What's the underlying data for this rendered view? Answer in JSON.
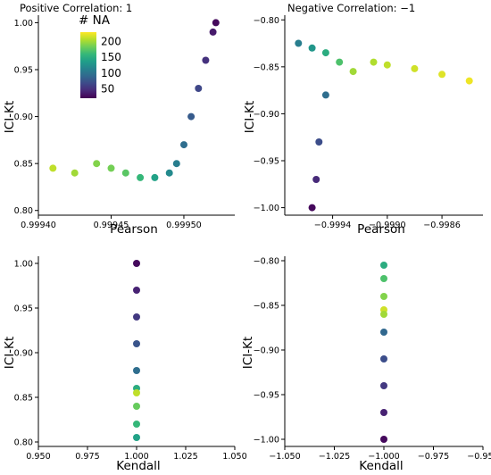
{
  "figure": {
    "colorbar": {
      "title": "# NA",
      "ticks": [
        200,
        150,
        100,
        50
      ],
      "range": [
        20,
        230
      ],
      "colormap": [
        "#440154",
        "#482878",
        "#3e4989",
        "#31688e",
        "#26828e",
        "#1f9e89",
        "#35b779",
        "#6ece58",
        "#b5de2b",
        "#fde725"
      ]
    }
  },
  "chart_data": [
    {
      "type": "scatter",
      "title": "Positive Correlation: 1",
      "xlabel": "Pearson",
      "ylabel": "ICI-Kt",
      "xlim": [
        0.9994,
        0.999535
      ],
      "ylim": [
        0.795,
        1.008
      ],
      "xticks": [
        0.9994,
        0.99945,
        0.9995
      ],
      "xtick_labels": [
        "0.99940",
        "0.99945",
        "0.99950"
      ],
      "yticks": [
        0.8,
        0.85,
        0.9,
        0.95,
        1.0
      ],
      "ytick_labels": [
        "0.80",
        "0.85",
        "0.90",
        "0.95",
        "1.00"
      ],
      "grid": false,
      "legend": "colorbar top-left",
      "series": [
        {
          "color_by": "# NA",
          "x": [
            0.99941,
            0.999425,
            0.99944,
            0.99945,
            0.99946,
            0.99947,
            0.99948,
            0.99949,
            0.999495,
            0.9995,
            0.999505,
            0.99951,
            0.999515,
            0.99952,
            0.999522
          ],
          "y": [
            0.845,
            0.84,
            0.85,
            0.845,
            0.84,
            0.835,
            0.835,
            0.84,
            0.85,
            0.87,
            0.9,
            0.93,
            0.96,
            0.99,
            1.0
          ],
          "na": [
            210,
            200,
            190,
            185,
            175,
            160,
            140,
            120,
            110,
            95,
            80,
            65,
            50,
            35,
            25
          ]
        }
      ]
    },
    {
      "type": "scatter",
      "title": "Negative Correlation: −1",
      "xlabel": "Pearson",
      "ylabel": "ICI-Kt",
      "xlim": [
        -0.99975,
        -0.9983
      ],
      "ylim": [
        -1.008,
        -0.795
      ],
      "xticks": [
        -0.9994,
        -0.999,
        -0.9986
      ],
      "xtick_labels": [
        "−0.9994",
        "−0.9990",
        "−0.9986"
      ],
      "yticks": [
        -0.8,
        -0.85,
        -0.9,
        -0.95,
        -1.0
      ],
      "ytick_labels": [
        "−0.80",
        "−0.85",
        "−0.90",
        "−0.95",
        "−1.00"
      ],
      "grid": false,
      "series": [
        {
          "color_by": "# NA",
          "x": [
            -0.99965,
            -0.99955,
            -0.99945,
            -0.99935,
            -0.99925,
            -0.9991,
            -0.999,
            -0.9988,
            -0.9986,
            -0.9984,
            -0.99945,
            -0.9995,
            -0.99952,
            -0.99955
          ],
          "y": [
            -0.825,
            -0.83,
            -0.835,
            -0.845,
            -0.855,
            -0.845,
            -0.848,
            -0.852,
            -0.858,
            -0.865,
            -0.88,
            -0.93,
            -0.97,
            -1.0
          ],
          "na": [
            110,
            130,
            150,
            170,
            200,
            205,
            210,
            215,
            220,
            225,
            95,
            70,
            45,
            25
          ]
        }
      ]
    },
    {
      "type": "scatter",
      "xlabel": "Kendall",
      "ylabel": "ICI-Kt",
      "xlim": [
        0.95,
        1.05
      ],
      "ylim": [
        0.795,
        1.008
      ],
      "xticks": [
        0.95,
        0.975,
        1.0,
        1.025,
        1.05
      ],
      "xtick_labels": [
        "0.950",
        "0.975",
        "1.000",
        "1.025",
        "1.050"
      ],
      "yticks": [
        0.8,
        0.85,
        0.9,
        0.95,
        1.0
      ],
      "ytick_labels": [
        "0.80",
        "0.85",
        "0.90",
        "0.95",
        "1.00"
      ],
      "grid": false,
      "series": [
        {
          "color_by": "# NA",
          "x": [
            1.0,
            1.0,
            1.0,
            1.0,
            1.0,
            1.0,
            1.0,
            1.0,
            1.0,
            1.0
          ],
          "y": [
            1.0,
            0.97,
            0.94,
            0.91,
            0.88,
            0.86,
            0.855,
            0.84,
            0.82,
            0.805
          ],
          "na": [
            25,
            40,
            55,
            75,
            95,
            150,
            210,
            180,
            160,
            140
          ]
        }
      ]
    },
    {
      "type": "scatter",
      "xlabel": "Kendall",
      "ylabel": "ICI-Kt",
      "xlim": [
        -1.05,
        -0.95
      ],
      "ylim": [
        -1.008,
        -0.795
      ],
      "xticks": [
        -1.05,
        -1.025,
        -1.0,
        -0.975,
        -0.95
      ],
      "xtick_labels": [
        "−1.050",
        "−1.025",
        "−1.000",
        "−0.975",
        "−0.950"
      ],
      "yticks": [
        -0.8,
        -0.85,
        -0.9,
        -0.95,
        -1.0
      ],
      "ytick_labels": [
        "−0.80",
        "−0.85",
        "−0.90",
        "−0.95",
        "−1.00"
      ],
      "grid": false,
      "series": [
        {
          "color_by": "# NA",
          "x": [
            -1.0,
            -1.0,
            -1.0,
            -1.0,
            -1.0,
            -1.0,
            -1.0,
            -1.0,
            -1.0,
            -1.0
          ],
          "y": [
            -0.805,
            -0.82,
            -0.84,
            -0.855,
            -0.86,
            -0.88,
            -0.91,
            -0.94,
            -0.97,
            -1.0
          ],
          "na": [
            150,
            170,
            190,
            215,
            200,
            90,
            70,
            55,
            40,
            25
          ]
        }
      ]
    }
  ]
}
